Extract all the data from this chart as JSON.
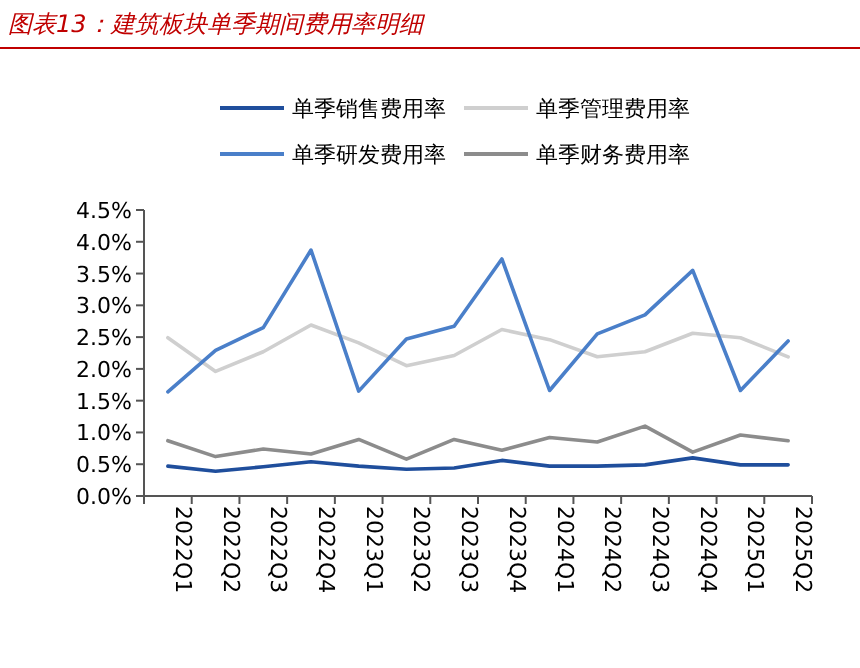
{
  "chart_data": {
    "type": "line",
    "title": "图表13：建筑板块单季期间费用率明细",
    "categories": [
      "2022Q1",
      "2022Q2",
      "2022Q3",
      "2022Q4",
      "2023Q1",
      "2023Q2",
      "2023Q3",
      "2023Q4",
      "2024Q1",
      "2024Q2",
      "2024Q3",
      "2024Q4",
      "2025Q1",
      "2025Q2"
    ],
    "series": [
      {
        "name": "单季销售费用率",
        "color": "#1f4e9c",
        "values": [
          0.47,
          0.39,
          0.46,
          0.54,
          0.47,
          0.42,
          0.44,
          0.56,
          0.47,
          0.47,
          0.49,
          0.6,
          0.49,
          0.49
        ]
      },
      {
        "name": "单季管理费用率",
        "color": "#cfcfcf",
        "values": [
          2.49,
          1.96,
          2.27,
          2.69,
          2.41,
          2.05,
          2.21,
          2.62,
          2.46,
          2.19,
          2.27,
          2.56,
          2.49,
          2.19
        ]
      },
      {
        "name": "单季研发费用率",
        "color": "#4a7fc9",
        "values": [
          1.64,
          2.29,
          2.65,
          3.87,
          1.65,
          2.47,
          2.67,
          3.73,
          1.66,
          2.55,
          2.85,
          3.55,
          1.66,
          2.44
        ]
      },
      {
        "name": "单季财务费用率",
        "color": "#8c8c8c",
        "values": [
          0.87,
          0.62,
          0.74,
          0.66,
          0.89,
          0.58,
          0.89,
          0.72,
          0.92,
          0.85,
          1.1,
          0.69,
          0.96,
          0.87
        ]
      }
    ],
    "ylim": [
      0,
      4.5
    ],
    "yticks": [
      {
        "value": 0,
        "label": "0.0%"
      },
      {
        "value": 0.5,
        "label": "0.5%"
      },
      {
        "value": 1,
        "label": "1.0%"
      },
      {
        "value": 1.5,
        "label": "1.5%"
      },
      {
        "value": 2,
        "label": "2.0%"
      },
      {
        "value": 2.5,
        "label": "2.5%"
      },
      {
        "value": 3,
        "label": "3.0%"
      },
      {
        "value": 3.5,
        "label": "3.5%"
      },
      {
        "value": 4,
        "label": "4.0%"
      },
      {
        "value": 4.5,
        "label": "4.5%"
      }
    ],
    "legend": "top",
    "grid": false,
    "marker": "none",
    "line_style": "solid"
  }
}
